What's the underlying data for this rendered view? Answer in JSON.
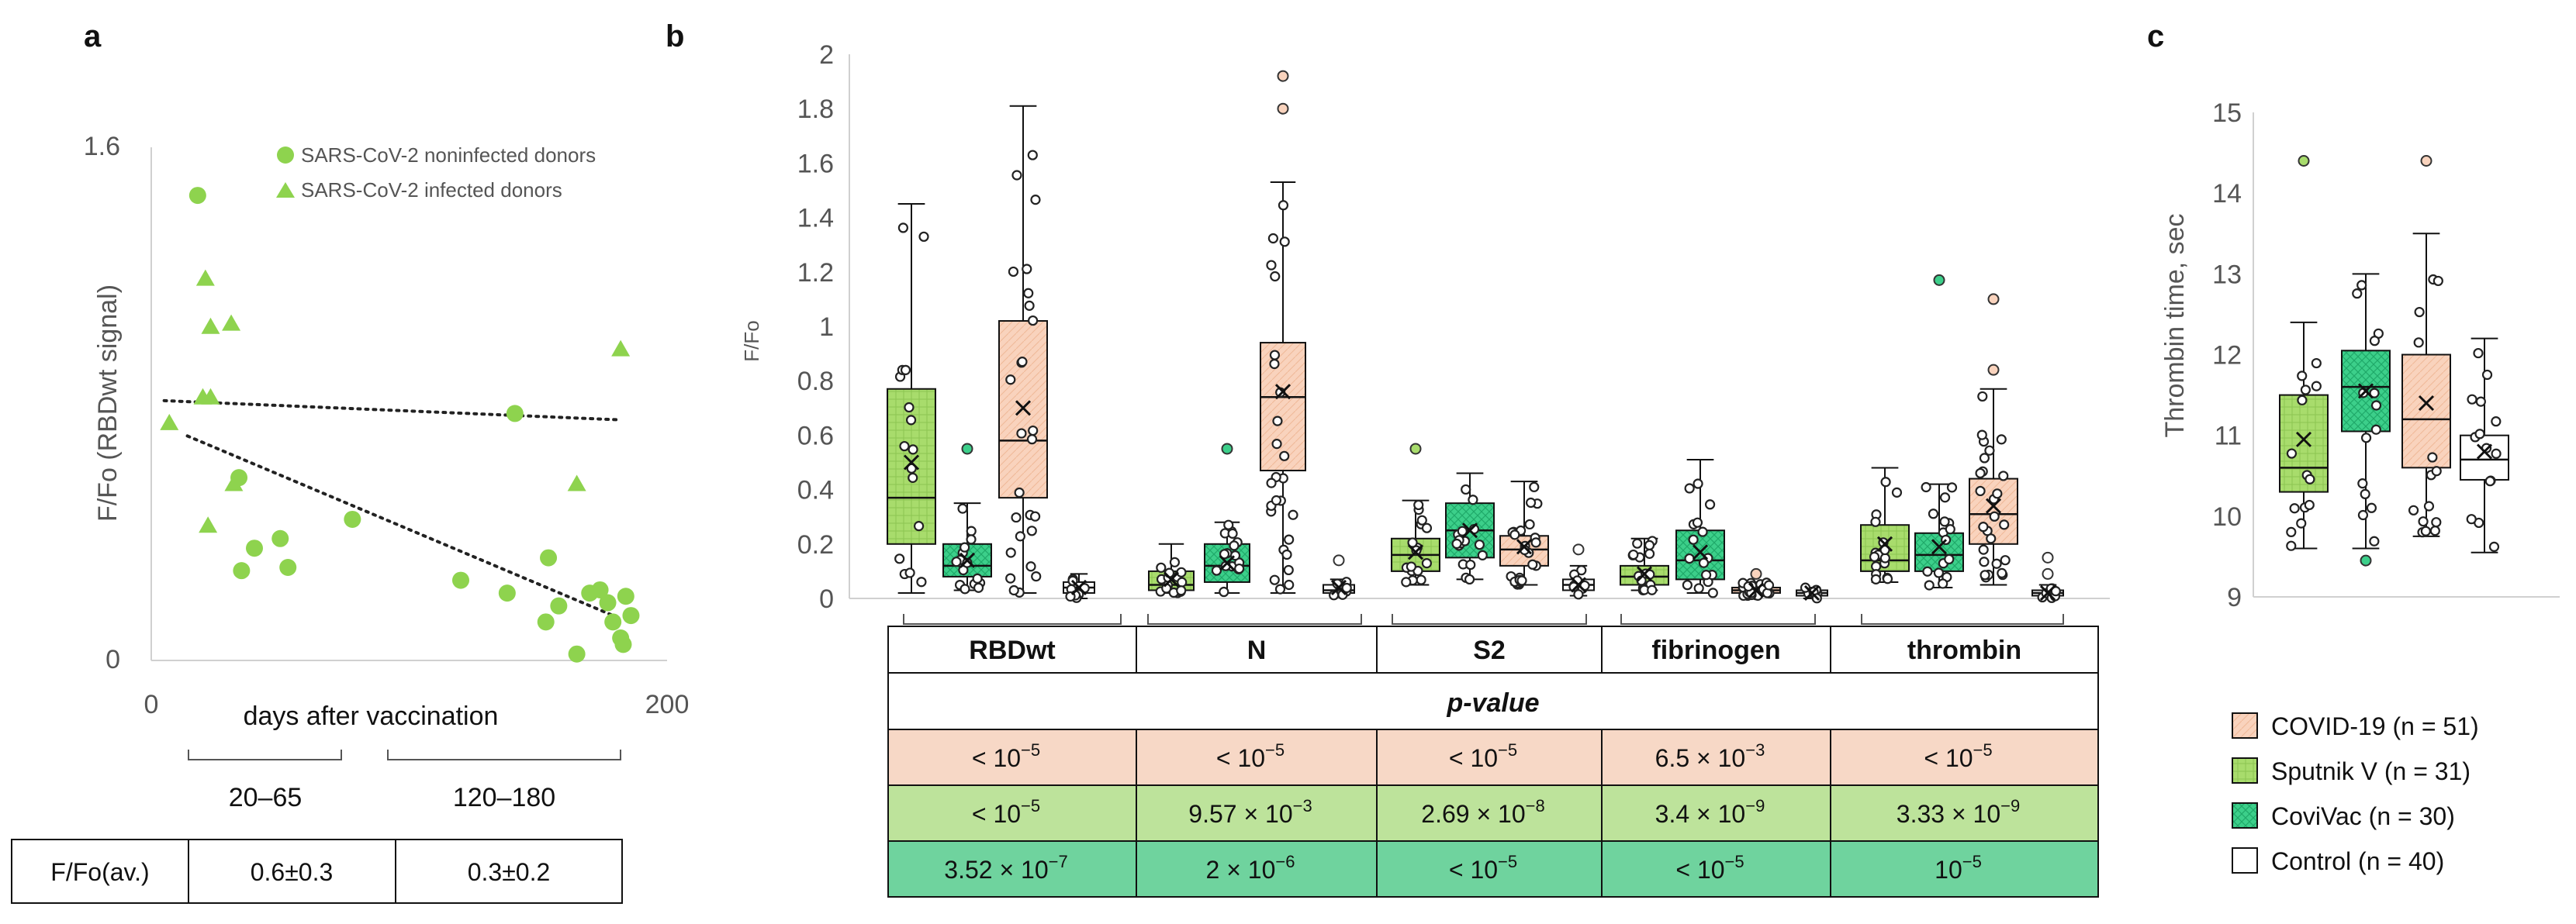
{
  "panel_a": {
    "letter": "a",
    "legend": [
      "SARS-CoV-2 noninfected donors",
      "SARS-CoV-2 infected donors"
    ],
    "ylabel": "F/Fo (RBDwt signal)",
    "xlabel": "days after vaccination",
    "yticks": [
      "1.6",
      "0"
    ],
    "xticks": [
      "0",
      "200"
    ],
    "range_labels": [
      "20–65",
      "120–180"
    ],
    "table": {
      "header": "F/Fo(av.)",
      "values": [
        "0.6±0.3",
        "0.3±0.2"
      ]
    }
  },
  "panel_b": {
    "letter": "b",
    "ylabel": "F/Fo",
    "yticks": [
      "0",
      "0.2",
      "0.4",
      "0.6",
      "0.8",
      "1",
      "1.2",
      "1.4",
      "1.6",
      "1.8",
      "2"
    ],
    "groups": [
      "RBDwt",
      "N",
      "S2",
      "fibrinogen",
      "thrombin"
    ],
    "table": {
      "header": "p-value",
      "rows": [
        {
          "name": "COVID-19",
          "color": "#f7d8c6",
          "cells": [
            "< 10",
            "< 10",
            "< 10",
            "6.5 × 10",
            "< 10"
          ],
          "exps": [
            "−5",
            "−5",
            "−5",
            "−3",
            "−5"
          ]
        },
        {
          "name": "Sputnik V",
          "color": "#bde39b",
          "cells": [
            "< 10",
            "9.57 × 10",
            "2.69 × 10",
            "3.4 × 10",
            "3.33 × 10"
          ],
          "exps": [
            "−5",
            "−3",
            "−8",
            "−9",
            "−9"
          ]
        },
        {
          "name": "CoviVac",
          "color": "#6fd39e",
          "cells": [
            "3.52 × 10",
            "2 × 10",
            "< 10",
            "< 10",
            "10"
          ],
          "exps": [
            "−7",
            "−6",
            "−5",
            "−5",
            "−5"
          ]
        }
      ]
    }
  },
  "panel_c": {
    "letter": "c",
    "ylabel": "Thrombin time, sec",
    "yticks": [
      "9",
      "10",
      "11",
      "12",
      "13",
      "14",
      "15"
    ]
  },
  "legend": [
    {
      "label": "COVID-19 (n = 51)",
      "color": "#f9d3bd"
    },
    {
      "label": "Sputnik V (n = 31)",
      "color": "#a8dc6c"
    },
    {
      "label": "CoviVac (n = 30)",
      "color": "#3ccf8a"
    },
    {
      "label": "Control (n = 40)",
      "color": "#ffffff"
    }
  ],
  "chart_data": [
    {
      "type": "scatter",
      "title": "",
      "xlabel": "days after vaccination",
      "ylabel": "F/Fo (RBDwt signal)",
      "xlim": [
        0,
        200
      ],
      "ylim": [
        0,
        1.6
      ],
      "series": [
        {
          "name": "SARS-CoV-2 noninfected donors",
          "marker": "circle",
          "points": [
            [
              18,
              1.45
            ],
            [
              34,
              0.57
            ],
            [
              40,
              0.35
            ],
            [
              35,
              0.28
            ],
            [
              50,
              0.38
            ],
            [
              53,
              0.29
            ],
            [
              78,
              0.44
            ],
            [
              120,
              0.25
            ],
            [
              138,
              0.21
            ],
            [
              141,
              0.77
            ],
            [
              153,
              0.12
            ],
            [
              154,
              0.32
            ],
            [
              158,
              0.17
            ],
            [
              165,
              0.02
            ],
            [
              170,
              0.21
            ],
            [
              174,
              0.22
            ],
            [
              177,
              0.18
            ],
            [
              179,
              0.12
            ],
            [
              182,
              0.07
            ],
            [
              183,
              0.05
            ],
            [
              184,
              0.2
            ],
            [
              186,
              0.14
            ]
          ]
        },
        {
          "name": "SARS-CoV-2 infected donors",
          "marker": "triangle",
          "points": [
            [
              7,
              0.74
            ],
            [
              20,
              0.82
            ],
            [
              21,
              1.19
            ],
            [
              23,
              1.04
            ],
            [
              23,
              0.82
            ],
            [
              31,
              1.05
            ],
            [
              32,
              0.55
            ],
            [
              22,
              0.42
            ],
            [
              165,
              0.55
            ],
            [
              182,
              0.97
            ]
          ]
        }
      ],
      "trendlines": [
        {
          "name": "noninfected",
          "from": [
            5,
            0.81
          ],
          "to": [
            182,
            0.75
          ]
        },
        {
          "name": "infected",
          "from": [
            14,
            0.7
          ],
          "to": [
            182,
            0.13
          ]
        }
      ]
    },
    {
      "type": "box",
      "title": "",
      "ylabel": "F/Fo",
      "ylim": [
        0,
        2
      ],
      "categories": [
        "RBDwt",
        "N",
        "S2",
        "fibrinogen",
        "thrombin"
      ],
      "series": [
        {
          "name": "Sputnik V",
          "boxes": [
            {
              "min": 0.02,
              "q1": 0.2,
              "median": 0.37,
              "q3": 0.77,
              "max": 1.45,
              "mean": 0.5,
              "outliers": []
            },
            {
              "min": 0.02,
              "q1": 0.03,
              "median": 0.05,
              "q3": 0.1,
              "max": 0.2,
              "mean": 0.07,
              "outliers": []
            },
            {
              "min": 0.05,
              "q1": 0.1,
              "median": 0.16,
              "q3": 0.22,
              "max": 0.36,
              "mean": 0.17,
              "outliers": [
                0.55
              ]
            },
            {
              "min": 0.03,
              "q1": 0.05,
              "median": 0.08,
              "q3": 0.12,
              "max": 0.22,
              "mean": 0.09,
              "outliers": []
            },
            {
              "min": 0.06,
              "q1": 0.1,
              "median": 0.14,
              "q3": 0.27,
              "max": 0.48,
              "mean": 0.2,
              "outliers": []
            }
          ]
        },
        {
          "name": "CoviVac",
          "boxes": [
            {
              "min": 0.03,
              "q1": 0.08,
              "median": 0.12,
              "q3": 0.2,
              "max": 0.35,
              "mean": 0.14,
              "outliers": [
                0.55
              ]
            },
            {
              "min": 0.02,
              "q1": 0.06,
              "median": 0.12,
              "q3": 0.2,
              "max": 0.28,
              "mean": 0.13,
              "outliers": [
                0.55
              ]
            },
            {
              "min": 0.07,
              "q1": 0.15,
              "median": 0.25,
              "q3": 0.35,
              "max": 0.46,
              "mean": 0.25,
              "outliers": []
            },
            {
              "min": 0.02,
              "q1": 0.07,
              "median": 0.14,
              "q3": 0.25,
              "max": 0.51,
              "mean": 0.17,
              "outliers": []
            },
            {
              "min": 0.04,
              "q1": 0.1,
              "median": 0.16,
              "q3": 0.24,
              "max": 0.42,
              "mean": 0.19,
              "outliers": [
                1.17
              ]
            }
          ]
        },
        {
          "name": "COVID-19",
          "boxes": [
            {
              "min": 0.02,
              "q1": 0.37,
              "median": 0.58,
              "q3": 1.02,
              "max": 1.81,
              "mean": 0.7,
              "outliers": []
            },
            {
              "min": 0.02,
              "q1": 0.47,
              "median": 0.74,
              "q3": 0.94,
              "max": 1.53,
              "mean": 0.76,
              "outliers": [
                1.8,
                1.92
              ]
            },
            {
              "min": 0.05,
              "q1": 0.12,
              "median": 0.18,
              "q3": 0.23,
              "max": 0.43,
              "mean": 0.19,
              "outliers": []
            },
            {
              "min": 0.01,
              "q1": 0.02,
              "median": 0.03,
              "q3": 0.04,
              "max": 0.06,
              "mean": 0.03,
              "outliers": [
                0.09
              ]
            },
            {
              "min": 0.05,
              "q1": 0.2,
              "median": 0.31,
              "q3": 0.44,
              "max": 0.77,
              "mean": 0.34,
              "outliers": [
                0.84,
                1.1
              ]
            }
          ]
        },
        {
          "name": "Control",
          "boxes": [
            {
              "min": 0.0,
              "q1": 0.02,
              "median": 0.04,
              "q3": 0.06,
              "max": 0.09,
              "mean": 0.04,
              "outliers": []
            },
            {
              "min": 0.01,
              "q1": 0.02,
              "median": 0.03,
              "q3": 0.05,
              "max": 0.07,
              "mean": 0.04,
              "outliers": [
                0.14
              ]
            },
            {
              "min": 0.01,
              "q1": 0.03,
              "median": 0.05,
              "q3": 0.07,
              "max": 0.12,
              "mean": 0.05,
              "outliers": [
                0.18
              ]
            },
            {
              "min": 0.0,
              "q1": 0.01,
              "median": 0.02,
              "q3": 0.03,
              "max": 0.04,
              "mean": 0.02,
              "outliers": []
            },
            {
              "min": 0.0,
              "q1": 0.01,
              "median": 0.02,
              "q3": 0.03,
              "max": 0.05,
              "mean": 0.02,
              "outliers": [
                0.09,
                0.15
              ]
            }
          ]
        }
      ]
    },
    {
      "type": "box",
      "title": "",
      "ylabel": "Thrombin time, sec",
      "ylim": [
        9,
        15
      ],
      "series": [
        {
          "name": "Sputnik V",
          "box": {
            "min": 9.6,
            "q1": 10.3,
            "median": 10.6,
            "q3": 11.5,
            "max": 12.4,
            "mean": 10.95,
            "outliers": [
              14.4
            ]
          }
        },
        {
          "name": "CoviVac",
          "box": {
            "min": 9.6,
            "q1": 11.05,
            "median": 11.6,
            "q3": 12.05,
            "max": 13.0,
            "mean": 11.55,
            "outliers": [
              9.45
            ]
          }
        },
        {
          "name": "COVID-19",
          "box": {
            "min": 9.75,
            "q1": 10.6,
            "median": 11.2,
            "q3": 12.0,
            "max": 13.5,
            "mean": 11.4,
            "outliers": [
              14.4
            ]
          }
        },
        {
          "name": "Control",
          "box": {
            "min": 9.55,
            "q1": 10.45,
            "median": 10.7,
            "q3": 11.0,
            "max": 12.2,
            "mean": 10.8,
            "outliers": []
          }
        }
      ]
    }
  ]
}
